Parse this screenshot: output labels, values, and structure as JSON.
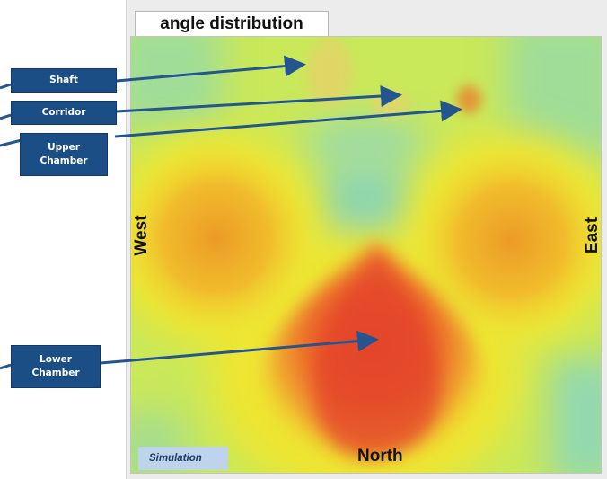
{
  "tab": {
    "title": "angle distribution"
  },
  "axes": {
    "west": "West",
    "east": "East",
    "north": "North"
  },
  "badge": {
    "label": "Simulation"
  },
  "callouts": {
    "shaft": {
      "line1": "Shaft",
      "line2": ""
    },
    "corridor": {
      "line1": "Corridor",
      "line2": ""
    },
    "upper_chamber": {
      "line1": "Upper",
      "line2": "Chamber"
    },
    "lower_chamber": {
      "line1": "Lower",
      "line2": "Chamber"
    }
  },
  "colors": {
    "callout_fill": "#1c4e86",
    "arrow": "#24558f",
    "heat_low": "#8fd6b0",
    "heat_mid": "#f0ee2a",
    "heat_high": "#e6432c",
    "badge_fill": "#bed3ec"
  }
}
